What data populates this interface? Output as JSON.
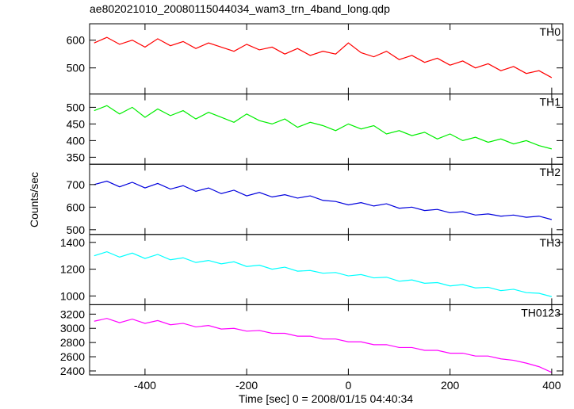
{
  "title": "ae802021010_20080115044034_wam3_trn_4band_long.qdp",
  "xlabel": "Time [sec] 0 = 2008/01/15 04:40:34",
  "ylabel": "Counts/sec",
  "chart_data": [
    {
      "type": "line",
      "label": "TH0",
      "color": "#ff0000",
      "x": [
        -500,
        -475,
        -450,
        -425,
        -400,
        -375,
        -350,
        -325,
        -300,
        -275,
        -250,
        -225,
        -200,
        -175,
        -150,
        -125,
        -100,
        -75,
        -50,
        -25,
        0,
        25,
        50,
        75,
        100,
        125,
        150,
        175,
        200,
        225,
        250,
        275,
        300,
        325,
        350,
        375,
        400
      ],
      "values": [
        590,
        610,
        585,
        600,
        575,
        605,
        580,
        595,
        570,
        590,
        575,
        560,
        585,
        565,
        575,
        550,
        570,
        545,
        560,
        550,
        590,
        555,
        540,
        560,
        530,
        545,
        520,
        535,
        510,
        525,
        500,
        515,
        490,
        505,
        480,
        490,
        465
      ],
      "xlim": [
        -509,
        422
      ],
      "xticks": [
        -400,
        -200,
        0,
        200,
        400
      ],
      "ylim": [
        406,
        659
      ],
      "yticks": [
        500,
        600
      ]
    },
    {
      "type": "line",
      "label": "TH1",
      "color": "#00ee00",
      "x": [
        -500,
        -475,
        -450,
        -425,
        -400,
        -375,
        -350,
        -325,
        -300,
        -275,
        -250,
        -225,
        -200,
        -175,
        -150,
        -125,
        -100,
        -75,
        -50,
        -25,
        0,
        25,
        50,
        75,
        100,
        125,
        150,
        175,
        200,
        225,
        250,
        275,
        300,
        325,
        350,
        375,
        400
      ],
      "values": [
        490,
        505,
        480,
        500,
        470,
        495,
        475,
        490,
        465,
        485,
        470,
        455,
        480,
        460,
        450,
        465,
        440,
        455,
        445,
        430,
        450,
        435,
        445,
        420,
        430,
        415,
        425,
        405,
        420,
        400,
        410,
        395,
        405,
        390,
        400,
        385,
        375
      ],
      "xlim": [
        -509,
        422
      ],
      "xticks": [
        -400,
        -200,
        0,
        200,
        400
      ],
      "ylim": [
        329,
        540
      ],
      "yticks": [
        350,
        400,
        450,
        500
      ]
    },
    {
      "type": "line",
      "label": "TH2",
      "color": "#0000dd",
      "x": [
        -500,
        -475,
        -450,
        -425,
        -400,
        -375,
        -350,
        -325,
        -300,
        -275,
        -250,
        -225,
        -200,
        -175,
        -150,
        -125,
        -100,
        -75,
        -50,
        -25,
        0,
        25,
        50,
        75,
        100,
        125,
        150,
        175,
        200,
        225,
        250,
        275,
        300,
        325,
        350,
        375,
        400
      ],
      "values": [
        700,
        715,
        690,
        710,
        685,
        705,
        680,
        695,
        670,
        685,
        660,
        675,
        650,
        665,
        645,
        655,
        640,
        650,
        630,
        625,
        610,
        620,
        605,
        615,
        595,
        600,
        585,
        590,
        575,
        580,
        565,
        570,
        560,
        565,
        555,
        560,
        545
      ],
      "xlim": [
        -509,
        422
      ],
      "xticks": [
        -400,
        -200,
        0,
        200,
        400
      ],
      "ylim": [
        479,
        790
      ],
      "yticks": [
        500,
        600,
        700
      ]
    },
    {
      "type": "line",
      "label": "TH3",
      "color": "#00ffff",
      "x": [
        -500,
        -475,
        -450,
        -425,
        -400,
        -375,
        -350,
        -325,
        -300,
        -275,
        -250,
        -225,
        -200,
        -175,
        -150,
        -125,
        -100,
        -75,
        -50,
        -25,
        0,
        25,
        50,
        75,
        100,
        125,
        150,
        175,
        200,
        225,
        250,
        275,
        300,
        325,
        350,
        375,
        400
      ],
      "values": [
        1300,
        1330,
        1290,
        1320,
        1280,
        1310,
        1270,
        1285,
        1250,
        1265,
        1240,
        1255,
        1220,
        1230,
        1200,
        1215,
        1185,
        1190,
        1170,
        1175,
        1150,
        1160,
        1135,
        1140,
        1110,
        1120,
        1095,
        1100,
        1075,
        1085,
        1060,
        1065,
        1040,
        1050,
        1025,
        1020,
        995
      ],
      "xlim": [
        -509,
        422
      ],
      "xticks": [
        -400,
        -200,
        0,
        200,
        400
      ],
      "ylim": [
        935,
        1459
      ],
      "yticks": [
        1000,
        1200,
        1400
      ]
    },
    {
      "type": "line",
      "label": "TH0123",
      "color": "#ff00ff",
      "x": [
        -500,
        -475,
        -450,
        -425,
        -400,
        -375,
        -350,
        -325,
        -300,
        -275,
        -250,
        -225,
        -200,
        -175,
        -150,
        -125,
        -100,
        -75,
        -50,
        -25,
        0,
        25,
        50,
        75,
        100,
        125,
        150,
        175,
        200,
        225,
        250,
        275,
        300,
        325,
        350,
        375,
        400
      ],
      "values": [
        3100,
        3140,
        3080,
        3130,
        3070,
        3110,
        3050,
        3070,
        3020,
        3040,
        2990,
        3000,
        2960,
        2970,
        2930,
        2930,
        2890,
        2890,
        2850,
        2850,
        2810,
        2810,
        2770,
        2770,
        2730,
        2730,
        2690,
        2690,
        2650,
        2650,
        2610,
        2610,
        2570,
        2550,
        2510,
        2460,
        2380
      ],
      "xlim": [
        -509,
        422
      ],
      "xticks": [
        -400,
        -200,
        0,
        200,
        400
      ],
      "ylim": [
        2344,
        3333
      ],
      "yticks": [
        2400,
        2600,
        2800,
        3000,
        3200
      ]
    }
  ]
}
